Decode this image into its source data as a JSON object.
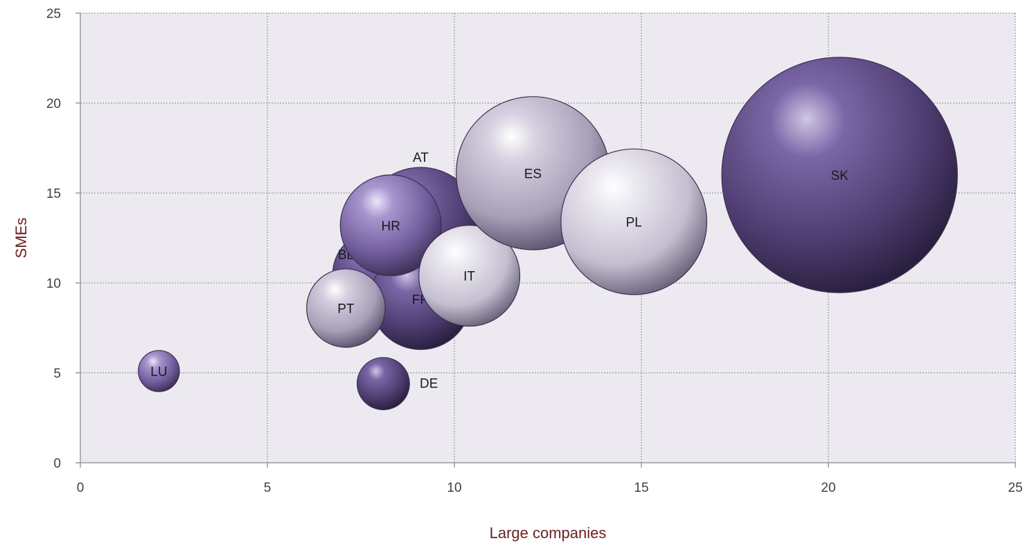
{
  "chart_data": {
    "type": "bubble",
    "title": "",
    "xlabel": "Large companies",
    "ylabel": "SMEs",
    "xlim": [
      0,
      25
    ],
    "ylim": [
      0,
      25
    ],
    "x_ticks": [
      "0",
      "5",
      "10",
      "15",
      "20",
      "25"
    ],
    "y_ticks": [
      "0",
      "5",
      "10",
      "15",
      "20",
      "25"
    ],
    "grid": true,
    "plot_background": "#ECEAF0",
    "grid_color": "#9a9a9a",
    "axis_title_color": "#6b1f1f",
    "palette": {
      "dark": "#5a4a7c",
      "medium": "#8a78b0",
      "light": "#c2bbd0",
      "pale": "#dcd8e4"
    },
    "points": [
      {
        "label": "AT",
        "x": 9.1,
        "y": 13.1,
        "size": 3.2,
        "color": "dark"
      },
      {
        "label": "BE",
        "x": 7.9,
        "y": 10.5,
        "size": 2.3,
        "color": "dark"
      },
      {
        "label": "FR",
        "x": 9.1,
        "y": 9.1,
        "size": 2.7,
        "color": "dark"
      },
      {
        "label": "HR",
        "x": 8.3,
        "y": 13.2,
        "size": 2.7,
        "color": "medium"
      },
      {
        "label": "IT",
        "x": 10.4,
        "y": 10.4,
        "size": 2.7,
        "color": "pale"
      },
      {
        "label": "PT",
        "x": 7.1,
        "y": 8.6,
        "size": 2.1,
        "color": "light"
      },
      {
        "label": "LU",
        "x": 2.1,
        "y": 5.1,
        "size": 1.1,
        "color": "medium"
      },
      {
        "label": "DE",
        "x": 8.1,
        "y": 4.4,
        "size": 1.4,
        "color": "dark"
      },
      {
        "label": "ES",
        "x": 12.1,
        "y": 16.1,
        "size": 4.1,
        "color": "light"
      },
      {
        "label": "PL",
        "x": 14.8,
        "y": 13.4,
        "size": 3.9,
        "color": "pale"
      },
      {
        "label": "SK",
        "x": 20.3,
        "y": 16.0,
        "size": 6.3,
        "color": "dark"
      }
    ]
  }
}
